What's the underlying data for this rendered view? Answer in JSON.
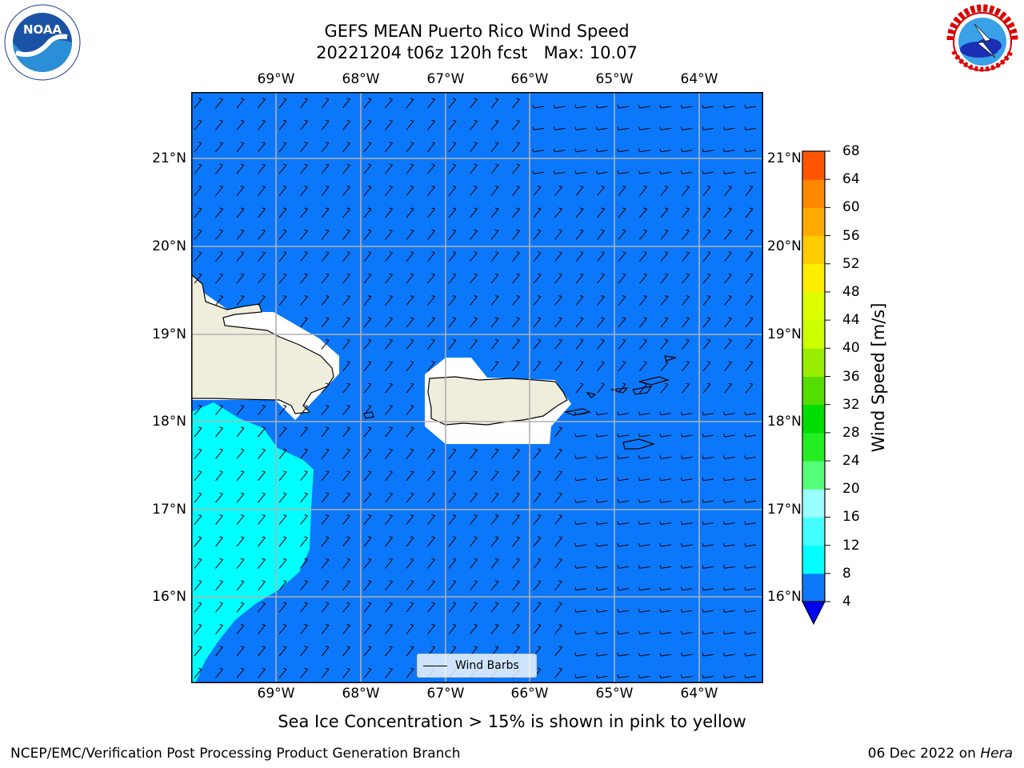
{
  "title": {
    "line1": "GEFS MEAN Puerto Rico Wind Speed",
    "line2": "20221204 t06z 120h fcst   Max: 10.07"
  },
  "logos": {
    "noara": {
      "text": "NOAA",
      "ring_text": "NATIONAL OCEANIC AND ATMOSPHERIC ADMINISTRATION · U.S. DEPARTMENT OF COMMERCE"
    },
    "nws": {
      "ring_text": "NATIONAL WEATHER SERVICE"
    }
  },
  "map": {
    "longitude_labels": [
      "69°W",
      "68°W",
      "67°W",
      "66°W",
      "65°W",
      "64°W"
    ],
    "latitude_labels": [
      "21°N",
      "20°N",
      "19°N",
      "18°N",
      "17°N",
      "16°N"
    ],
    "lon_range": [
      -70.0,
      -63.25
    ],
    "lat_range": [
      15.0,
      21.75
    ],
    "ocean_color": "#0b78fb",
    "land_color": "#efeddc",
    "high_wind_color": "#00ffff",
    "legend_label": "Wind Barbs"
  },
  "colorbar": {
    "label": "Wind Speed [m/s]",
    "ticks": [
      "4",
      "8",
      "12",
      "16",
      "20",
      "24",
      "28",
      "32",
      "36",
      "40",
      "44",
      "48",
      "52",
      "56",
      "60",
      "64",
      "68"
    ],
    "colors": [
      "#0b78fb",
      "#00ffff",
      "#44ffff",
      "#99ffff",
      "#55ff77",
      "#22ee22",
      "#00dd00",
      "#55dd00",
      "#99ee00",
      "#ccff00",
      "#ddff00",
      "#ffee00",
      "#ffcc00",
      "#ffaa00",
      "#ff8800",
      "#ff5500",
      "#ff2200",
      "#ff0000"
    ],
    "extend_color": "#0000f0"
  },
  "caption": "Sea Ice Concentration > 15% is shown in pink to yellow",
  "footer": {
    "left": "NCEP/EMC/Verification Post Processing Product Generation Branch",
    "right_date": "06 Dec 2022 on ",
    "right_host": "Hera"
  }
}
